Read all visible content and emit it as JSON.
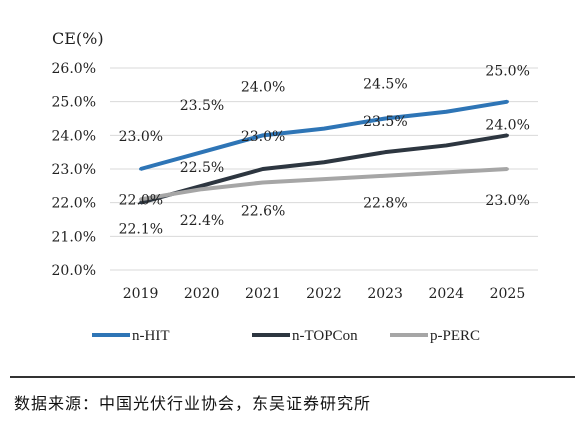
{
  "chart_data": {
    "type": "line",
    "title": "",
    "xlabel": "",
    "ylabel": "CE(%)",
    "categories": [
      "2019",
      "2020",
      "2021",
      "2022",
      "2023",
      "2024",
      "2025"
    ],
    "ylim": [
      20,
      26
    ],
    "yticks": [
      "20.0%",
      "21.0%",
      "22.0%",
      "23.0%",
      "24.0%",
      "25.0%",
      "26.0%"
    ],
    "grid": true,
    "legend_position": "bottom",
    "series": [
      {
        "name": "n-HIT",
        "color": "#2e75b6",
        "values": [
          23.0,
          23.5,
          24.0,
          24.2,
          24.5,
          24.7,
          25.0
        ],
        "labels": {
          "0": "23.0%",
          "1": "23.5%",
          "2": "24.0%",
          "4": "24.5%",
          "6": "25.0%"
        }
      },
      {
        "name": "n-TOPCon",
        "color": "#2d3640",
        "values": [
          22.0,
          22.5,
          23.0,
          23.2,
          23.5,
          23.7,
          24.0
        ],
        "labels": {
          "0": "22.0%",
          "1": "22.5%",
          "2": "23.0%",
          "4": "23.5%",
          "6": "24.0%"
        }
      },
      {
        "name": "p-PERC",
        "color": "#a6a6a6",
        "values": [
          22.1,
          22.4,
          22.6,
          22.7,
          22.8,
          22.9,
          23.0
        ],
        "labels": {
          "0": "22.1%",
          "1": "22.4%",
          "2": "22.6%",
          "4": "22.8%",
          "6": "23.0%"
        }
      }
    ]
  },
  "source_text": "数据来源：中国光伏行业协会，东吴证券研究所"
}
